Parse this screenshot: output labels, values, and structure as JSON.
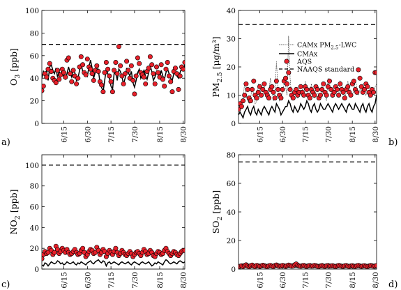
{
  "chart_data": [
    {
      "panel_label": "a)",
      "type": "line",
      "ylabel_main": "O",
      "ylabel_sub": "3",
      "ylabel_rest": " [ppb]",
      "ylim": [
        0,
        100
      ],
      "yticks": [
        "0",
        "20",
        "40",
        "60",
        "80",
        "100"
      ],
      "xticks": [
        "6/15",
        "6/30",
        "7/15",
        "7/30",
        "8/15",
        "8/30"
      ],
      "xtick_days": [
        15,
        30,
        45,
        60,
        76,
        91
      ],
      "xlim": [
        1,
        92
      ],
      "grid": false,
      "standard": 70,
      "series": [
        {
          "key": "cmax",
          "values": [
            40,
            46,
            43,
            47,
            38,
            50,
            52,
            47,
            44,
            49,
            41,
            46,
            43,
            48,
            40,
            39,
            44,
            50,
            45,
            41,
            48,
            45,
            38,
            40,
            47,
            53,
            46,
            43,
            45,
            42,
            50,
            56,
            49,
            40,
            45,
            52,
            47,
            36,
            32,
            28,
            38,
            48,
            44,
            40,
            33,
            30,
            44,
            46,
            38,
            48,
            46,
            41,
            35,
            40,
            49,
            45,
            42,
            46,
            36,
            32,
            38,
            45,
            48,
            40,
            44,
            47,
            42,
            39,
            45,
            51,
            46,
            38,
            41,
            46,
            43,
            40,
            47,
            42,
            39,
            45,
            48,
            44,
            40,
            38,
            44,
            47,
            42,
            40,
            45,
            49,
            47,
            52
          ]
        },
        {
          "key": "aqs",
          "values": [
            29,
            33,
            44,
            41,
            48,
            53,
            46,
            40,
            38,
            36,
            47,
            39,
            43,
            48,
            45,
            41,
            56,
            58,
            44,
            37,
            47,
            42,
            35,
            40,
            50,
            59,
            52,
            45,
            43,
            57,
            50,
            48,
            44,
            38,
            47,
            51,
            46,
            37,
            34,
            28,
            45,
            54,
            48,
            42,
            37,
            28,
            47,
            54,
            44,
            68,
            51,
            42,
            35,
            44,
            55,
            47,
            40,
            51,
            38,
            26,
            42,
            58,
            53,
            45,
            43,
            41,
            35,
            46,
            49,
            59,
            52,
            44,
            35,
            50,
            45,
            41,
            52,
            39,
            33,
            48,
            54,
            42,
            37,
            28,
            46,
            49,
            44,
            30,
            42,
            50,
            48,
            54
          ]
        }
      ]
    },
    {
      "panel_label": "b)",
      "type": "line",
      "ylabel_main": "PM",
      "ylabel_sub": "2.5",
      "ylabel_rest": " [μg/m³]",
      "ylim": [
        0,
        40
      ],
      "yticks": [
        "0",
        "10",
        "20",
        "30",
        "40"
      ],
      "xticks": [
        "6/15",
        "6/30",
        "7/15",
        "7/30",
        "8/15",
        "8/30"
      ],
      "xtick_days": [
        15,
        30,
        45,
        60,
        76,
        91
      ],
      "xlim": [
        1,
        92
      ],
      "grid": false,
      "standard": 35,
      "legend": [
        "CAMx PM2.5-LWC",
        "CMAx",
        "AQS",
        "NAAQS standard"
      ],
      "series": [
        {
          "key": "lwc",
          "values": [
            7,
            6,
            7,
            9,
            14,
            10,
            8,
            7,
            9,
            13,
            10,
            7,
            8,
            14,
            11,
            9,
            12,
            13,
            10,
            9,
            11,
            16,
            12,
            8,
            10,
            22,
            12,
            8,
            9,
            11,
            14,
            13,
            10,
            31,
            16,
            9,
            11,
            12,
            10,
            9,
            11,
            13,
            12,
            10,
            15,
            12,
            9,
            10,
            14,
            11,
            9,
            12,
            11,
            10,
            9,
            13,
            12,
            10,
            8,
            16,
            13,
            11,
            9,
            13,
            12,
            10,
            10,
            15,
            14,
            12,
            9,
            11,
            15,
            13,
            11,
            10,
            12,
            15,
            13,
            10,
            12,
            11,
            14,
            12,
            10,
            11,
            9,
            10,
            12,
            11,
            13,
            14
          ]
        },
        {
          "key": "cmax",
          "values": [
            3,
            4,
            3,
            2,
            4,
            5,
            6,
            4,
            3,
            5,
            6,
            4,
            3,
            5,
            4,
            3,
            5,
            6,
            5,
            4,
            3,
            5,
            6,
            5,
            4,
            7,
            6,
            5,
            3,
            4,
            5,
            6,
            6,
            8,
            7,
            5,
            4,
            6,
            5,
            4,
            5,
            7,
            6,
            5,
            6,
            8,
            7,
            5,
            4,
            6,
            7,
            5,
            4,
            5,
            7,
            6,
            5,
            5,
            6,
            7,
            6,
            5,
            4,
            6,
            7,
            6,
            5,
            6,
            7,
            6,
            5,
            4,
            6,
            7,
            6,
            5,
            5,
            7,
            6,
            5,
            4,
            6,
            7,
            5,
            4,
            6,
            7,
            5,
            4,
            6,
            7,
            10
          ]
        },
        {
          "key": "aqs",
          "values": [
            5,
            7,
            6,
            8,
            10,
            14,
            12,
            9,
            8,
            12,
            15,
            10,
            9,
            11,
            13,
            10,
            12,
            14,
            11,
            10,
            9,
            12,
            13,
            11,
            9,
            15,
            12,
            10,
            9,
            12,
            15,
            16,
            14,
            18,
            12,
            10,
            9,
            11,
            12,
            10,
            11,
            13,
            11,
            10,
            13,
            12,
            10,
            9,
            12,
            11,
            10,
            13,
            12,
            9,
            10,
            12,
            14,
            11,
            10,
            13,
            15,
            12,
            10,
            11,
            13,
            12,
            10,
            14,
            12,
            11,
            9,
            12,
            13,
            11,
            10,
            14,
            15,
            12,
            11,
            19,
            16,
            13,
            11,
            12,
            14,
            13,
            11,
            10,
            12,
            11,
            18,
            18
          ]
        }
      ]
    },
    {
      "panel_label": "c)",
      "type": "line",
      "ylabel_main": "NO",
      "ylabel_sub": "2",
      "ylabel_rest": " [ppb]",
      "ylim": [
        0,
        110
      ],
      "yticks": [
        "0",
        "20",
        "40",
        "60",
        "80",
        "100"
      ],
      "xticks": [
        "6/15",
        "6/30",
        "7/15",
        "7/30",
        "8/15",
        "8/30"
      ],
      "xtick_days": [
        15,
        30,
        45,
        60,
        76,
        91
      ],
      "xlim": [
        1,
        92
      ],
      "grid": false,
      "standard": 100,
      "series": [
        {
          "key": "cmax",
          "values": [
            4,
            3,
            6,
            5,
            3,
            5,
            7,
            6,
            5,
            6,
            8,
            7,
            5,
            6,
            4,
            5,
            7,
            6,
            5,
            6,
            7,
            5,
            4,
            6,
            5,
            7,
            6,
            5,
            4,
            6,
            7,
            8,
            6,
            5,
            7,
            8,
            9,
            7,
            6,
            8,
            7,
            3,
            6,
            7,
            5,
            6,
            7,
            6,
            5,
            4,
            6,
            7,
            6,
            5,
            6,
            7,
            5,
            4,
            6,
            7,
            6,
            5,
            4,
            6,
            7,
            6,
            5,
            6,
            7,
            5,
            3,
            4,
            6,
            5,
            7,
            6,
            5,
            4,
            7,
            9,
            8,
            6,
            5,
            6,
            7,
            6,
            5,
            7,
            8,
            7,
            6,
            7
          ]
        },
        {
          "key": "aqs",
          "values": [
            10,
            14,
            17,
            15,
            16,
            20,
            18,
            14,
            16,
            22,
            19,
            15,
            17,
            20,
            18,
            16,
            19,
            16,
            14,
            15,
            17,
            19,
            16,
            14,
            15,
            18,
            20,
            16,
            12,
            14,
            17,
            19,
            18,
            15,
            16,
            21,
            18,
            14,
            16,
            19,
            17,
            12,
            15,
            18,
            16,
            14,
            17,
            20,
            16,
            13,
            15,
            18,
            16,
            14,
            13,
            15,
            17,
            15,
            12,
            14,
            16,
            17,
            15,
            13,
            16,
            19,
            17,
            14,
            15,
            18,
            16,
            13,
            12,
            15,
            17,
            16,
            14,
            15,
            18,
            20,
            17,
            15,
            13,
            15,
            17,
            16,
            14,
            13,
            15,
            17,
            18,
            18
          ]
        }
      ]
    },
    {
      "panel_label": "d)",
      "type": "line",
      "ylabel_main": "SO",
      "ylabel_sub": "2",
      "ylabel_rest": " [ppb]",
      "ylim": [
        0,
        80
      ],
      "yticks": [
        "0",
        "20",
        "40",
        "60",
        "80"
      ],
      "xticks": [
        "6/15",
        "6/30",
        "7/15",
        "7/30",
        "8/15",
        "8/30"
      ],
      "xtick_days": [
        15,
        30,
        45,
        60,
        76,
        91
      ],
      "xlim": [
        1,
        92
      ],
      "grid": false,
      "standard": 75,
      "series": [
        {
          "key": "cmax",
          "values": [
            1,
            1.5,
            1.2,
            1,
            1.3,
            1.6,
            1.2,
            1,
            1.4,
            1.5,
            1.2,
            1,
            1.3,
            1.1,
            1,
            1.2,
            1.4,
            1.3,
            1.1,
            1,
            1.2,
            1.3,
            1.1,
            1,
            1.2,
            1.4,
            1.3,
            1.1,
            1.2,
            1.3,
            1.1,
            1,
            1.2,
            1.4,
            1.3,
            1.1,
            1.2,
            1.3,
            1.5,
            1.2,
            1.1,
            1,
            1.2,
            1.3,
            1.1,
            1,
            1.2,
            1.3,
            1.1,
            1.2,
            1.4,
            1.3,
            1.1,
            1,
            1.2,
            1.3,
            1.1,
            1,
            1.2,
            1.3,
            1.1,
            1.2,
            1.3,
            1.1,
            1,
            1.2,
            1.4,
            1.2,
            1.1,
            1,
            1.2,
            1.3,
            1.1,
            1,
            1.2,
            1.3,
            1.1,
            1,
            1.2,
            1.3,
            1.1,
            1,
            1.2,
            1.3,
            1.1,
            1,
            1.2,
            1.4,
            1.3,
            1.1,
            1.2,
            1.3
          ]
        },
        {
          "key": "aqs",
          "values": [
            1.5,
            2,
            2.3,
            1.8,
            2.5,
            3,
            2.2,
            1.7,
            2.4,
            2.8,
            2.1,
            1.8,
            2.6,
            2.3,
            1.9,
            2.2,
            2.7,
            2.4,
            2,
            1.8,
            2.3,
            2.6,
            2.1,
            1.8,
            2.5,
            2.9,
            2.4,
            2,
            2.2,
            2.6,
            2.3,
            1.9,
            2.4,
            2.8,
            2.5,
            2.1,
            2.3,
            3,
            3.6,
            2.7,
            2.2,
            2,
            2.4,
            2.6,
            2.2,
            1.9,
            2.3,
            2.5,
            2.1,
            2.2,
            2.6,
            2.4,
            2,
            1.8,
            2.2,
            2.5,
            2.1,
            1.9,
            2.3,
            2.5,
            2.1,
            2.2,
            2.4,
            2,
            1.8,
            2.2,
            2.6,
            2.3,
            2,
            1.9,
            2.3,
            2.5,
            2.1,
            1.8,
            2.2,
            2.4,
            2,
            1.9,
            2.3,
            2.6,
            2.2,
            1.9,
            2.2,
            2.4,
            2,
            1.8,
            2.2,
            2.5,
            2.3,
            2,
            2.2,
            2.5
          ]
        }
      ]
    }
  ]
}
